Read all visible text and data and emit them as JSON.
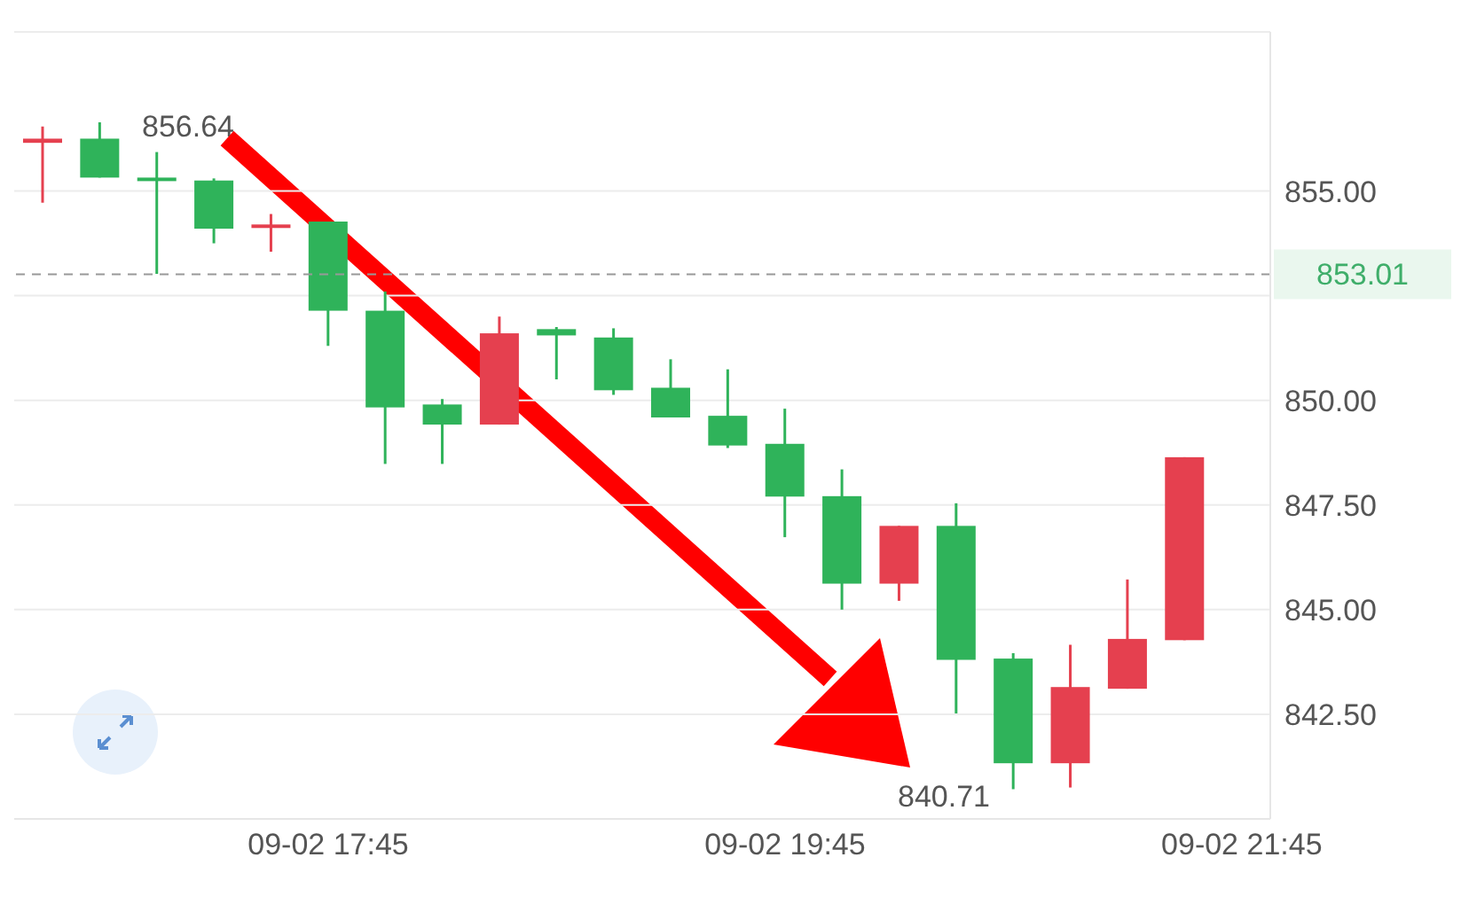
{
  "chart_data": {
    "type": "candlestick",
    "categories": [
      null,
      null,
      null,
      null,
      null,
      "09-02 17:45",
      null,
      null,
      null,
      null,
      null,
      null,
      null,
      "09-02 19:45",
      null,
      null,
      null,
      null,
      null,
      null,
      null,
      "09-02 21:45"
    ],
    "ohlc": [
      [
        856.15,
        856.54,
        854.72,
        856.25
      ],
      [
        856.25,
        856.64,
        855.32,
        855.32
      ],
      [
        855.32,
        855.93,
        853.02,
        855.25
      ],
      [
        855.25,
        855.3,
        853.75,
        854.1
      ],
      [
        854.15,
        854.45,
        853.55,
        854.2
      ],
      [
        854.27,
        854.27,
        851.3,
        852.14
      ],
      [
        852.14,
        852.6,
        848.48,
        849.83
      ],
      [
        849.9,
        850.03,
        848.48,
        849.42
      ],
      [
        849.42,
        852.0,
        849.42,
        851.6
      ],
      [
        851.7,
        851.75,
        850.5,
        851.55
      ],
      [
        851.5,
        851.72,
        850.13,
        850.24
      ],
      [
        850.3,
        850.98,
        849.59,
        849.59
      ],
      [
        849.63,
        850.74,
        848.86,
        848.92
      ],
      [
        848.96,
        849.8,
        846.73,
        847.7
      ],
      [
        847.71,
        848.35,
        845.0,
        845.62
      ],
      [
        845.62,
        847.0,
        845.21,
        847.0
      ],
      [
        847.0,
        847.54,
        842.52,
        843.8
      ],
      [
        843.83,
        843.96,
        840.71,
        841.33
      ],
      [
        841.33,
        844.16,
        840.75,
        843.15
      ],
      [
        843.11,
        845.72,
        843.11,
        844.3
      ],
      [
        844.27,
        848.64,
        844.27,
        848.64
      ],
      null
    ],
    "colors": [
      "#e5404f",
      "#2fb35a",
      "#2fb35a",
      "#2fb35a",
      "#e5404f",
      "#2fb35a",
      "#2fb35a",
      "#2fb35a",
      "#e5404f",
      "#2fb35a",
      "#2fb35a",
      "#2fb35a",
      "#2fb35a",
      "#2fb35a",
      "#2fb35a",
      "#e5404f",
      "#2fb35a",
      "#2fb35a",
      "#e5404f",
      "#e5404f",
      "#e5404f",
      null
    ],
    "ylim": [
      840.0,
      858.8
    ],
    "yticks": [
      {
        "value": 842.5,
        "label": "842.50"
      },
      {
        "value": 845,
        "label": "845.00"
      },
      {
        "value": 847.5,
        "label": "847.50"
      },
      {
        "value": 850,
        "label": "850.00"
      },
      {
        "value": 852.5,
        "label": null
      },
      {
        "value": 855,
        "label": "855.00"
      }
    ],
    "grid": "y",
    "ref_lines": [
      {
        "axis": "y",
        "value": 853.01,
        "label": "853.01",
        "color": "#999999",
        "line_style": "dashed"
      }
    ],
    "annotations": [
      "856.64",
      "840.71"
    ]
  }
}
